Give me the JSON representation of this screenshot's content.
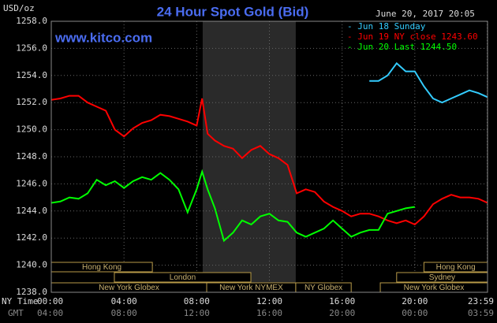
{
  "chart_data": {
    "type": "line",
    "title": "24 Hour Spot Gold (Bid)",
    "watermark": "www.kitco.com",
    "timestamp": "June 20, 2017 20:05",
    "y_label": "USD/oz",
    "x_row_label": "NY Time",
    "x2_row_label": "GMT",
    "x": [
      0,
      0.5,
      1,
      1.5,
      2,
      2.5,
      3,
      3.5,
      4,
      4.5,
      5,
      5.5,
      6,
      6.5,
      7,
      7.5,
      8,
      8.3,
      8.6,
      9,
      9.5,
      10,
      10.5,
      11,
      11.5,
      12,
      12.5,
      13,
      13.5,
      14,
      14.5,
      15,
      15.5,
      16,
      16.5,
      17,
      17.5,
      18,
      18.5,
      19,
      19.5,
      20,
      20.5,
      21,
      21.5,
      22,
      22.5,
      23,
      23.5,
      24
    ],
    "series": [
      {
        "name": "- Jun 18 Sunday",
        "color": "#33ccff",
        "values": [
          null,
          null,
          null,
          null,
          null,
          null,
          null,
          null,
          null,
          null,
          null,
          null,
          null,
          null,
          null,
          null,
          null,
          null,
          null,
          null,
          null,
          null,
          null,
          null,
          null,
          null,
          null,
          null,
          null,
          null,
          null,
          null,
          null,
          null,
          null,
          null,
          1253.6,
          1253.6,
          1254.0,
          1254.9,
          1254.3,
          1254.3,
          1253.2,
          1252.3,
          1252.0,
          1252.3,
          1252.6,
          1252.9,
          1252.7,
          1252.4
        ]
      },
      {
        "name": "- Jun 19 NY close 1243.60",
        "color": "#ff0000",
        "values": [
          1252.2,
          1252.3,
          1252.5,
          1252.5,
          1252.0,
          1251.7,
          1251.4,
          1250.0,
          1249.5,
          1250.1,
          1250.5,
          1250.7,
          1251.1,
          1251.0,
          1250.8,
          1250.6,
          1250.3,
          1252.3,
          1249.7,
          1249.2,
          1248.8,
          1248.6,
          1247.9,
          1248.5,
          1248.8,
          1248.2,
          1247.9,
          1247.4,
          1245.3,
          1245.6,
          1245.4,
          1244.7,
          1244.3,
          1244.0,
          1243.6,
          1243.8,
          1243.8,
          1243.6,
          1243.3,
          1243.1,
          1243.3,
          1243.0,
          1243.6,
          1244.5,
          1244.9,
          1245.2,
          1245.0,
          1245.0,
          1244.9,
          1244.6
        ]
      },
      {
        "name": "- Jun 20 Last 1244.50",
        "color": "#00ff00",
        "values": [
          1244.6,
          1244.7,
          1245.0,
          1244.9,
          1245.3,
          1246.3,
          1245.9,
          1246.2,
          1245.7,
          1246.2,
          1246.5,
          1246.3,
          1246.8,
          1246.3,
          1245.6,
          1243.9,
          1245.6,
          1246.9,
          1245.6,
          1244.2,
          1241.8,
          1242.4,
          1243.3,
          1243.0,
          1243.6,
          1243.8,
          1243.3,
          1243.2,
          1242.4,
          1242.1,
          1242.4,
          1242.7,
          1243.3,
          1242.7,
          1242.1,
          1242.4,
          1242.6,
          1242.6,
          1243.8,
          1244.0,
          1244.2,
          1244.3,
          null,
          null,
          null,
          null,
          null,
          null,
          null,
          null
        ]
      }
    ],
    "xlim": [
      0,
      24
    ],
    "ylim": [
      1238,
      1258
    ],
    "yticks": [
      {
        "value": 1238,
        "label": "1238.0"
      },
      {
        "value": 1240,
        "label": "1240.0"
      },
      {
        "value": 1242,
        "label": "1242.0"
      },
      {
        "value": 1244,
        "label": "1244.0"
      },
      {
        "value": 1246,
        "label": "1246.0"
      },
      {
        "value": 1248,
        "label": "1248.0"
      },
      {
        "value": 1250,
        "label": "1250.0"
      },
      {
        "value": 1252,
        "label": "1252.0"
      },
      {
        "value": 1254,
        "label": "1254.0"
      },
      {
        "value": 1256,
        "label": "1256.0"
      },
      {
        "value": 1258,
        "label": "1258.0"
      }
    ],
    "xticks": [
      {
        "value": 0,
        "label": "00:00"
      },
      {
        "value": 4,
        "label": "04:00"
      },
      {
        "value": 8,
        "label": "08:00"
      },
      {
        "value": 12,
        "label": "12:00"
      },
      {
        "value": 16,
        "label": "16:00"
      },
      {
        "value": 20,
        "label": "20:00"
      },
      {
        "value": 23.98,
        "label": "23:59"
      }
    ],
    "x2tick_labels": [
      "04:00",
      "08:00",
      "12:00",
      "16:00",
      "20:00",
      "00:00",
      "03:59"
    ],
    "shaded_range": [
      8.33,
      13.45
    ],
    "grid": true,
    "sessions": [
      [
        {
          "label": "Hong Kong",
          "start": 0,
          "end": 5.56
        },
        {
          "label": "Hong Kong",
          "start": 20.5,
          "end": 24
        }
      ],
      [
        {
          "label": "London",
          "start": 3.47,
          "end": 10.98
        },
        {
          "label": "Sydney",
          "start": 19.0,
          "end": 24
        }
      ],
      [
        {
          "label": "New York Globex",
          "start": 0,
          "end": 8.55
        },
        {
          "label": "New York NYMEX",
          "start": 8.55,
          "end": 13.45
        },
        {
          "label": "NY Globex",
          "start": 13.45,
          "end": 16.5
        },
        {
          "label": "New York Globex",
          "start": 18.1,
          "end": 24
        }
      ]
    ]
  }
}
